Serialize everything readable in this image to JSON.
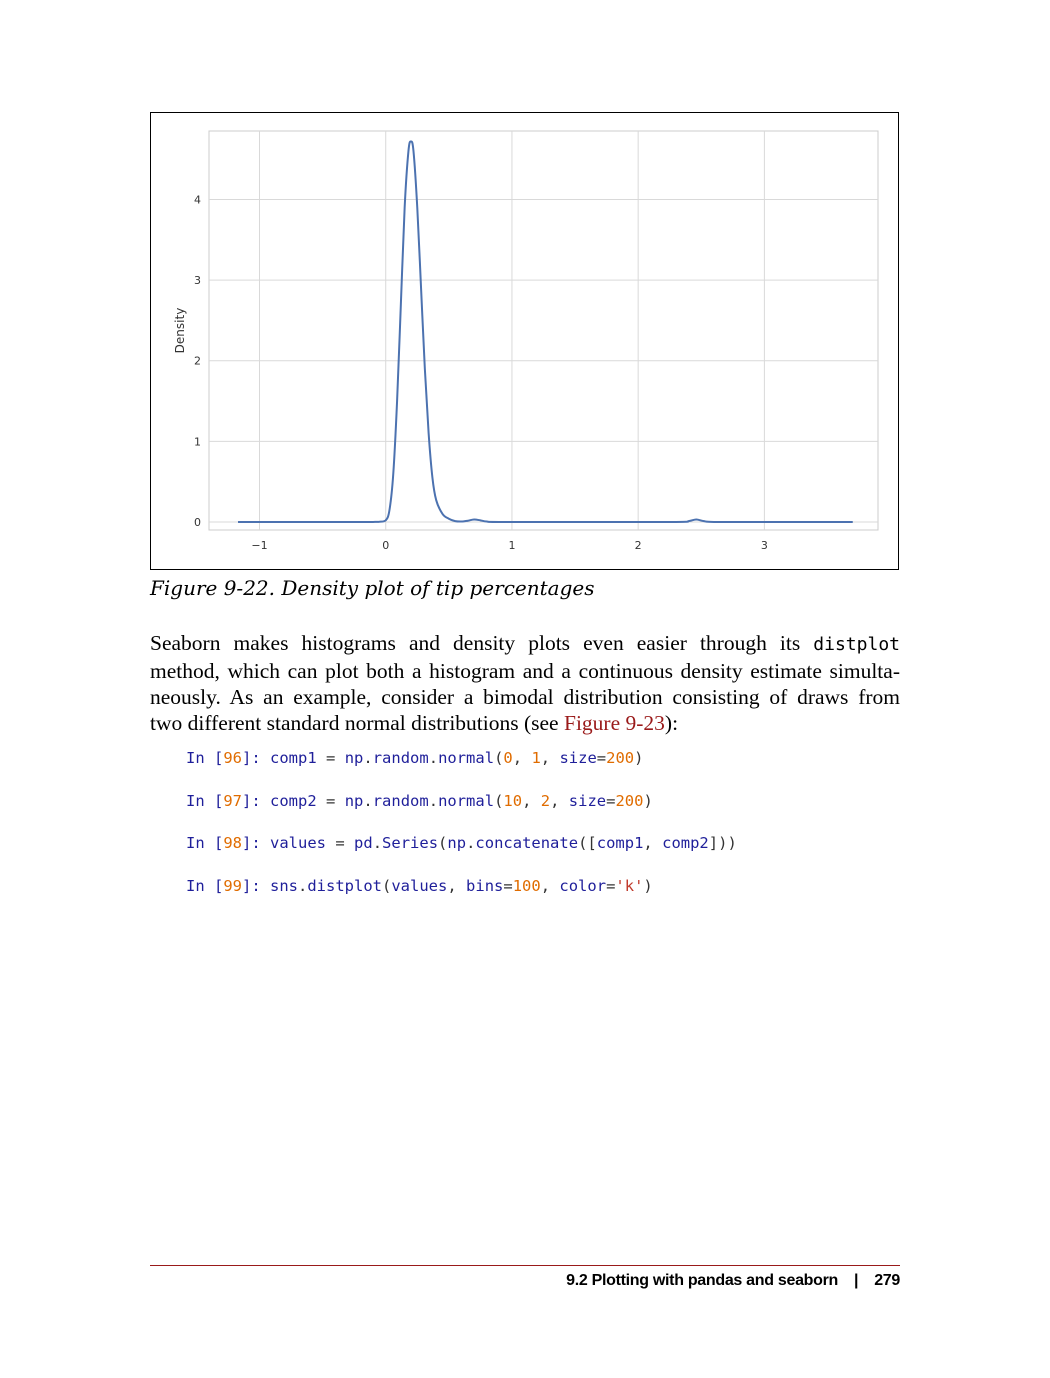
{
  "chart_data": {
    "type": "line",
    "title": "",
    "xlabel": "",
    "ylabel": "Density",
    "xlim": [
      -1.4,
      3.9
    ],
    "ylim": [
      -0.1,
      4.85
    ],
    "x_ticks": [
      -1,
      0,
      1,
      2,
      3
    ],
    "x_tick_labels": [
      "−1",
      "0",
      "1",
      "2",
      "3"
    ],
    "y_ticks": [
      0,
      1,
      2,
      3,
      4
    ],
    "y_tick_labels": [
      "0",
      "1",
      "2",
      "3",
      "4"
    ],
    "grid": true,
    "series": [
      {
        "name": "density",
        "color": "#4c72b0",
        "x": [
          -1.17,
          -0.3,
          -0.1,
          -0.05,
          0.0,
          0.03,
          0.06,
          0.09,
          0.12,
          0.15,
          0.18,
          0.2,
          0.22,
          0.25,
          0.28,
          0.31,
          0.34,
          0.37,
          0.4,
          0.45,
          0.5,
          0.55,
          0.6,
          0.65,
          0.7,
          0.75,
          0.8,
          0.9,
          1.5,
          2.3,
          2.4,
          2.46,
          2.52,
          2.6,
          3.0,
          3.7
        ],
        "y": [
          0.0,
          0.0,
          0.0,
          0.002,
          0.02,
          0.15,
          0.6,
          1.5,
          2.7,
          3.9,
          4.6,
          4.72,
          4.6,
          3.9,
          2.9,
          1.9,
          1.1,
          0.55,
          0.27,
          0.1,
          0.04,
          0.01,
          0.005,
          0.015,
          0.03,
          0.02,
          0.005,
          0.0,
          0.0,
          0.0,
          0.01,
          0.03,
          0.01,
          0.0,
          0.0,
          0.0
        ]
      }
    ]
  },
  "caption": "Figure 9-22. Density plot of tip percentages",
  "paragraph": {
    "l1_a": "Seaborn makes histograms and density plots even easier through its ",
    "l1_code": "distplot",
    "l2": "method, which can plot both a histogram and a continuous density estimate simulta-",
    "l3": "neously. As an example, consider a bimodal distribution consisting of draws from",
    "l4_a": "two different standard normal distributions (see ",
    "l4_link": "Figure 9-23",
    "l4_b": "):"
  },
  "code": [
    {
      "prompt": "In [",
      "num": "96",
      "close": "]: ",
      "body": "comp1 = np.random.normal(0, 1, size=200)"
    },
    {
      "prompt": "In [",
      "num": "97",
      "close": "]: ",
      "body": "comp2 = np.random.normal(10, 2, size=200)"
    },
    {
      "prompt": "In [",
      "num": "98",
      "close": "]: ",
      "body": "values = pd.Series(np.concatenate([comp1, comp2]))"
    },
    {
      "prompt": "In [",
      "num": "99",
      "close": "]: ",
      "body": "sns.distplot(values, bins=100, color='k')"
    }
  ],
  "footer": {
    "section": "9.2 Plotting with pandas and seaborn",
    "separator": "|",
    "page": "279"
  }
}
